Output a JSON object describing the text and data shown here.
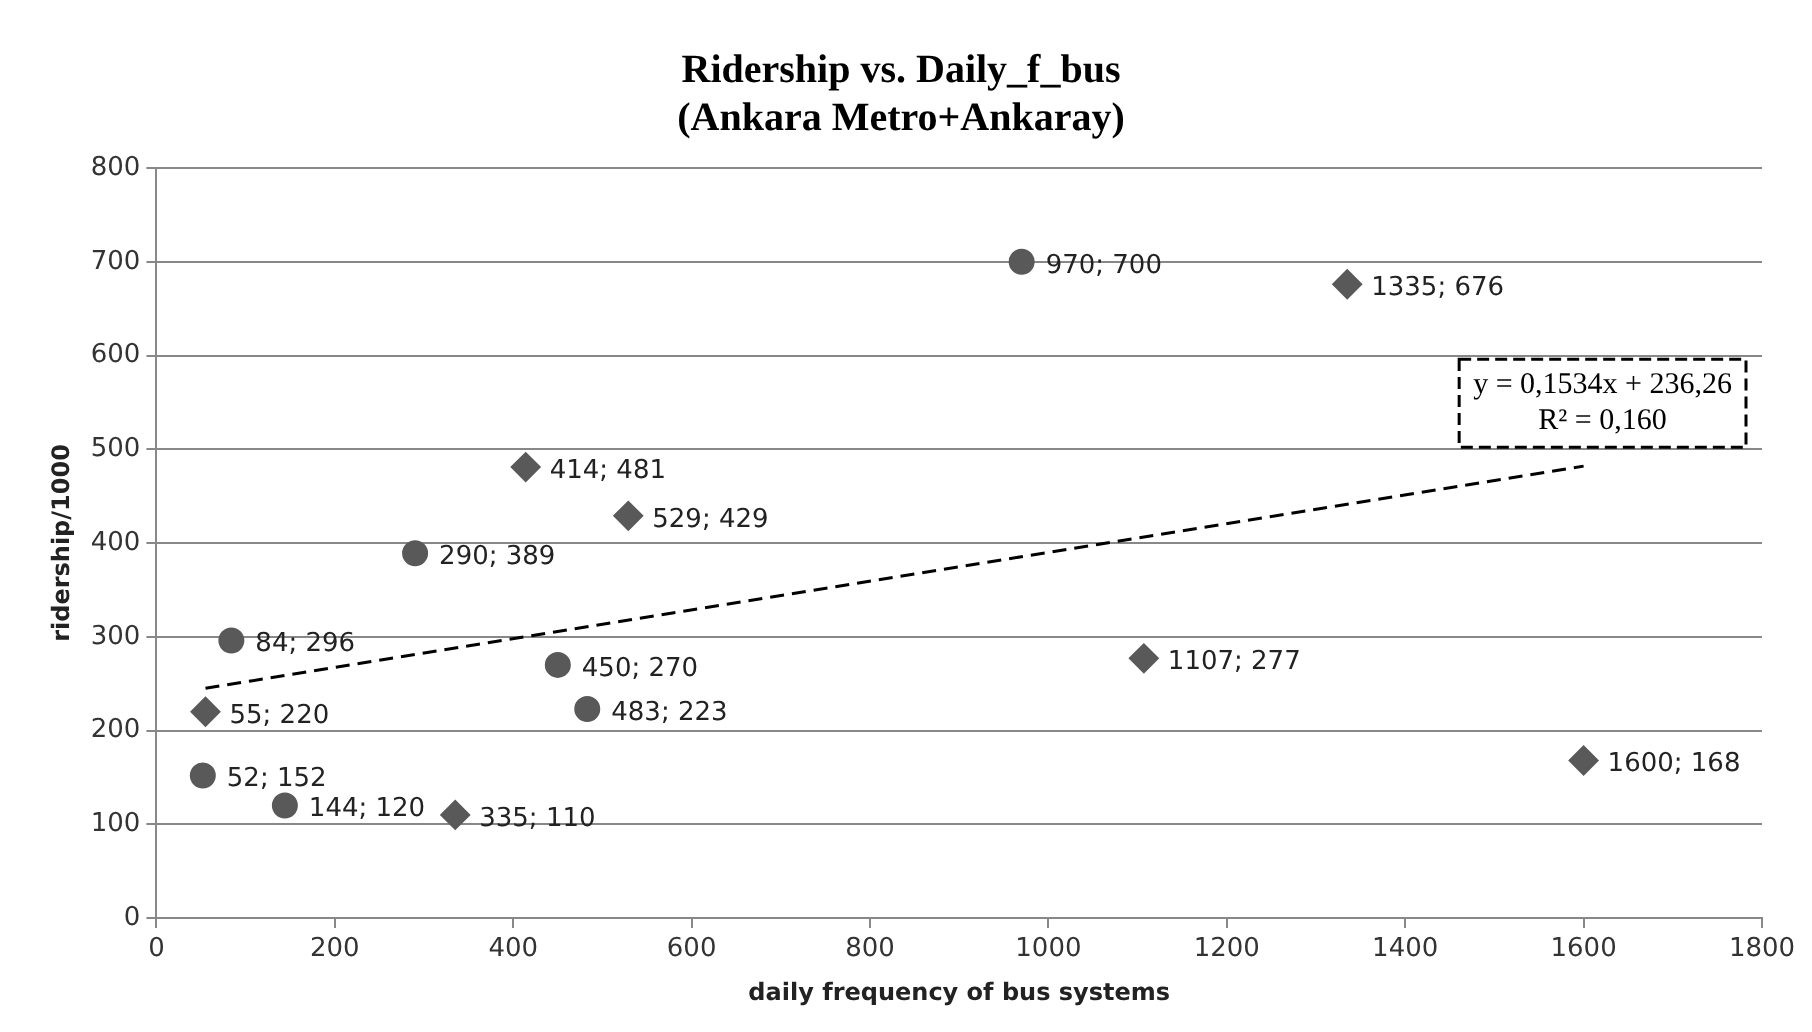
{
  "chart_data": {
    "type": "scatter",
    "title": "Ridership vs. Daily_f_bus",
    "subtitle": "(Ankara Metro+Ankaray)",
    "xlabel": "daily frequency of bus systems",
    "ylabel": "ridership/1000",
    "series": [
      {
        "marker": "circle",
        "color": "#595959",
        "x": [
          970,
          290,
          84,
          450,
          483,
          52,
          144
        ],
        "values": [
          700,
          389,
          296,
          270,
          223,
          152,
          120
        ],
        "value_labels": [
          "970; 700",
          "290; 389",
          "84; 296",
          "450; 270",
          "483; 223",
          "52; 152",
          "144; 120"
        ]
      },
      {
        "marker": "diamond",
        "color": "#595959",
        "x": [
          1335,
          414,
          529,
          55,
          335,
          1107,
          1600
        ],
        "values": [
          676,
          481,
          429,
          220,
          110,
          277,
          168
        ],
        "value_labels": [
          "1335; 676",
          "414; 481",
          "529; 429",
          "55; 220",
          "335; 110",
          "1107; 277",
          "1600; 168"
        ]
      },
      {
        "type": "line",
        "marker": "none",
        "line_style": "dashed",
        "color": "#000000",
        "x": [
          55,
          1600
        ],
        "values": [
          245,
          482
        ]
      }
    ],
    "annotations": [
      "y = 0,1534x + 236,26",
      "R² = 0,160"
    ],
    "xlim": [
      0,
      1800
    ],
    "xticks": [
      0,
      200,
      400,
      600,
      800,
      1000,
      1200,
      1400,
      1600,
      1800
    ],
    "ylim": [
      0,
      800
    ],
    "yticks": [
      0,
      100,
      200,
      300,
      400,
      500,
      600,
      700,
      800
    ],
    "grid": "y",
    "legend": false
  }
}
